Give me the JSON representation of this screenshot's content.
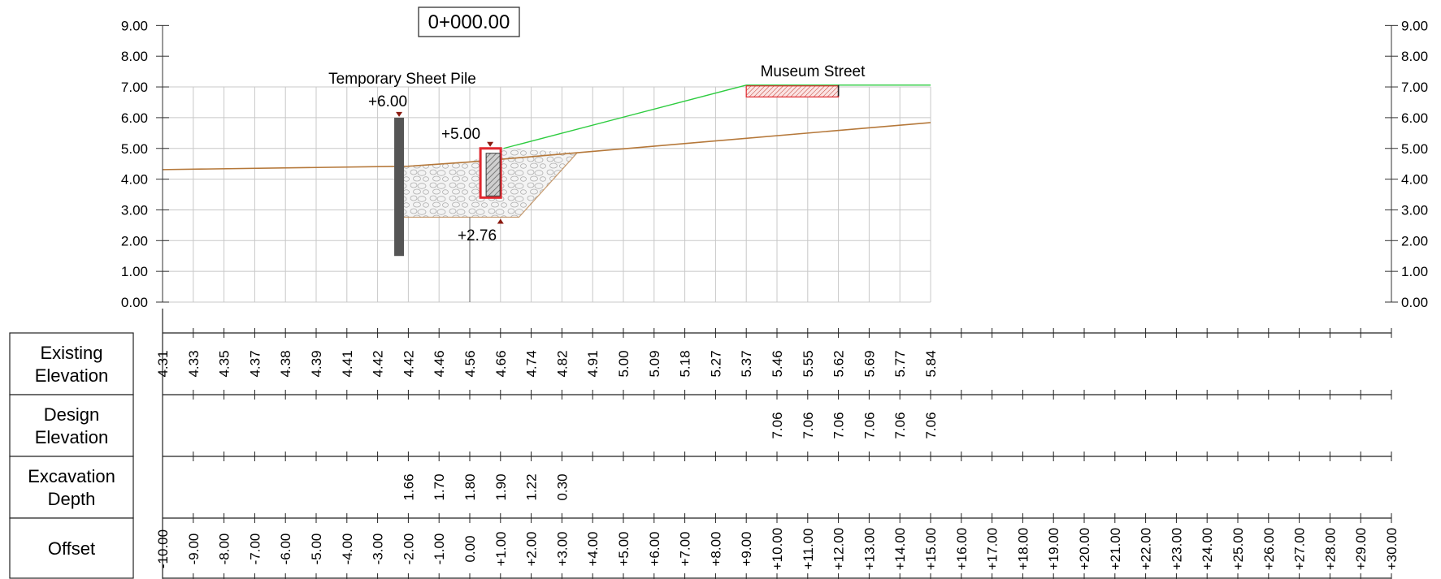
{
  "station": "0+000.00",
  "elevation_axis": {
    "labels": [
      "9.00",
      "8.00",
      "7.00",
      "6.00",
      "5.00",
      "4.00",
      "3.00",
      "2.00",
      "1.00",
      "0.00"
    ]
  },
  "annotations": {
    "sheet_pile_title": "Temporary Sheet Pile",
    "sheet_pile_top": "+6.00",
    "wall_top": "+5.00",
    "excavation_bottom": "+2.76",
    "street": "Museum Street"
  },
  "table": {
    "rows": [
      {
        "key": "existing",
        "label_lines": [
          "Existing",
          "Elevation"
        ]
      },
      {
        "key": "design",
        "label_lines": [
          "Design",
          "Elevation"
        ]
      },
      {
        "key": "depth",
        "label_lines": [
          "Excavation",
          "Depth"
        ]
      },
      {
        "key": "offset",
        "label_lines": [
          "Offset"
        ]
      }
    ],
    "offsets": [
      "-10.00",
      "-9.00",
      "-8.00",
      "-7.00",
      "-6.00",
      "-5.00",
      "-4.00",
      "-3.00",
      "-2.00",
      "-1.00",
      "0.00",
      "+1.00",
      "+2.00",
      "+3.00",
      "+4.00",
      "+5.00",
      "+6.00",
      "+7.00",
      "+8.00",
      "+9.00",
      "+10.00",
      "+11.00",
      "+12.00",
      "+13.00",
      "+14.00",
      "+15.00",
      "+16.00",
      "+17.00",
      "+18.00",
      "+19.00",
      "+20.00",
      "+21.00",
      "+22.00",
      "+23.00",
      "+24.00",
      "+25.00",
      "+26.00",
      "+27.00",
      "+28.00",
      "+29.00",
      "+30.00"
    ],
    "existing_elevation": [
      {
        "offset": -10,
        "value": "4.31"
      },
      {
        "offset": -9,
        "value": "4.33"
      },
      {
        "offset": -8,
        "value": "4.35"
      },
      {
        "offset": -7,
        "value": "4.37"
      },
      {
        "offset": -6,
        "value": "4.38"
      },
      {
        "offset": -5,
        "value": "4.39"
      },
      {
        "offset": -4,
        "value": "4.41"
      },
      {
        "offset": -3,
        "value": "4.42"
      },
      {
        "offset": -2,
        "value": "4.42"
      },
      {
        "offset": -1,
        "value": "4.46"
      },
      {
        "offset": 0,
        "value": "4.56"
      },
      {
        "offset": 1,
        "value": "4.66"
      },
      {
        "offset": 2,
        "value": "4.74"
      },
      {
        "offset": 3,
        "value": "4.82"
      },
      {
        "offset": 4,
        "value": "4.91"
      },
      {
        "offset": 5,
        "value": "5.00"
      },
      {
        "offset": 6,
        "value": "5.09"
      },
      {
        "offset": 7,
        "value": "5.18"
      },
      {
        "offset": 8,
        "value": "5.27"
      },
      {
        "offset": 9,
        "value": "5.37"
      },
      {
        "offset": 10,
        "value": "5.46"
      },
      {
        "offset": 11,
        "value": "5.55"
      },
      {
        "offset": 12,
        "value": "5.62"
      },
      {
        "offset": 13,
        "value": "5.69"
      },
      {
        "offset": 14,
        "value": "5.77"
      },
      {
        "offset": 15,
        "value": "5.84"
      }
    ],
    "design_elevation": [
      {
        "offset": 10,
        "value": "7.06"
      },
      {
        "offset": 11,
        "value": "7.06"
      },
      {
        "offset": 12,
        "value": "7.06"
      },
      {
        "offset": 13,
        "value": "7.06"
      },
      {
        "offset": 14,
        "value": "7.06"
      },
      {
        "offset": 15,
        "value": "7.06"
      }
    ],
    "excavation_depth": [
      {
        "offset": -2,
        "value": "1.66"
      },
      {
        "offset": -1,
        "value": "1.70"
      },
      {
        "offset": 0,
        "value": "1.80"
      },
      {
        "offset": 1,
        "value": "1.90"
      },
      {
        "offset": 2,
        "value": "1.22"
      },
      {
        "offset": 3,
        "value": "0.30"
      }
    ]
  },
  "profile": {
    "existing_ground": [
      [
        -10,
        4.31
      ],
      [
        -2,
        4.42
      ],
      [
        0,
        4.56
      ],
      [
        3.5,
        4.86
      ],
      [
        15,
        5.84
      ]
    ],
    "excavation_bottom_elevation": 2.76,
    "design_surface": [
      [
        1.1,
        5.0
      ],
      [
        9,
        7.06
      ],
      [
        15,
        7.06
      ]
    ],
    "sheet_pile": {
      "offset": -2.3,
      "top": 6.0,
      "bottom": 1.5
    },
    "wall": {
      "offset": 0.4,
      "top": 5.0,
      "bottom": 3.4
    },
    "street_slab": {
      "from": 9,
      "to": 12,
      "top": 7.06,
      "bottom": 6.7
    }
  },
  "colors": {
    "existing_ground": "#b5783a",
    "design_line": "#2ecc40",
    "sheet_pile": "#555555",
    "wall_outline": "#e0282f",
    "marker": "#8b1a10",
    "grid": "#c8c8c8"
  }
}
